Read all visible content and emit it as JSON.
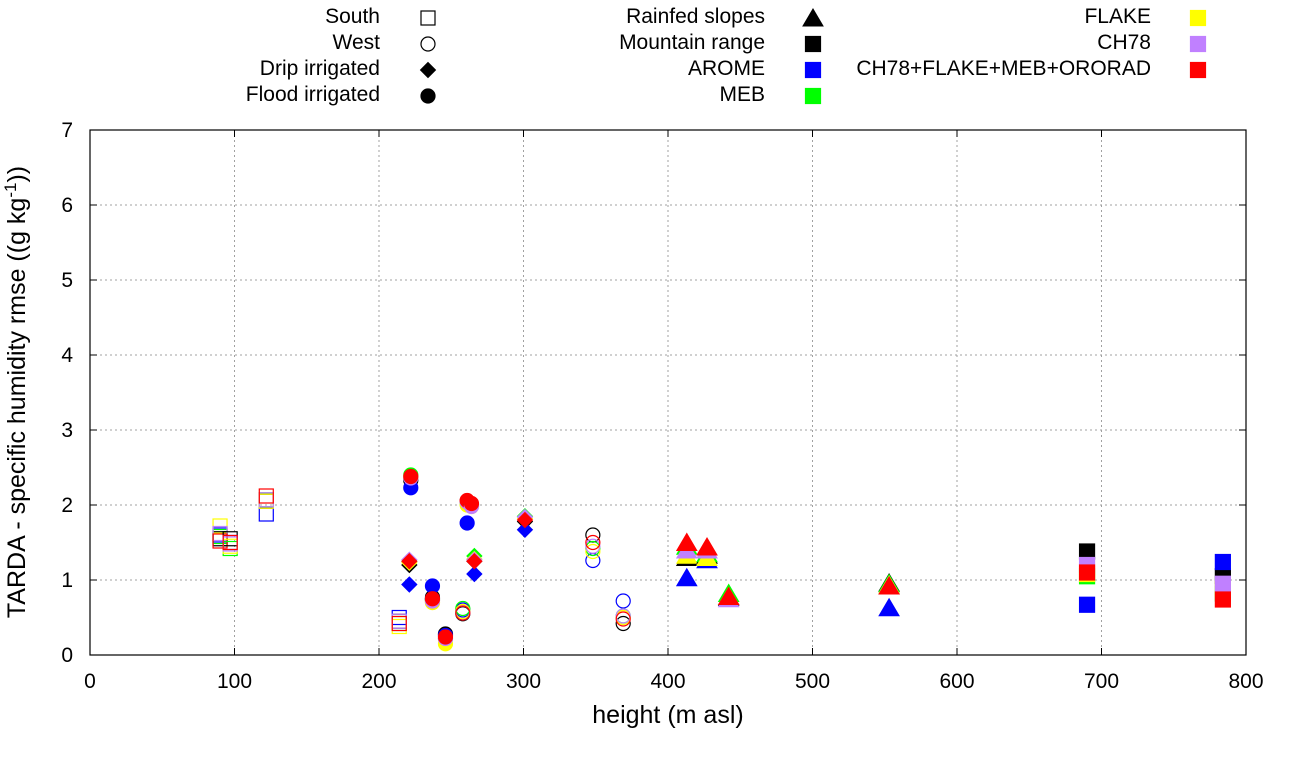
{
  "chart_data": {
    "type": "scatter",
    "xlabel": "height (m asl)",
    "ylabel_main": "TARDA - specific humidity rmse ((g kg",
    "ylabel_sup": "-1",
    "ylabel_end": "))",
    "xlim": [
      0,
      800
    ],
    "ylim": [
      0,
      7
    ],
    "xticks": [
      0,
      100,
      200,
      300,
      400,
      500,
      600,
      700,
      800
    ],
    "yticks": [
      0,
      1,
      2,
      3,
      4,
      5,
      6,
      7
    ],
    "grid": true,
    "legend_placement": "top, outside plot",
    "legend": {
      "markers": [
        {
          "label": "South",
          "symbol": "square-open"
        },
        {
          "label": "West",
          "symbol": "circle-open"
        },
        {
          "label": "Drip irrigated",
          "symbol": "diamond"
        },
        {
          "label": "Flood irrigated",
          "symbol": "circle"
        },
        {
          "label": "Rainfed slopes",
          "symbol": "triangle"
        },
        {
          "label": "Mountain range",
          "symbol": "square"
        }
      ],
      "experiments": [
        {
          "label": "AROME",
          "color": "#0000ff"
        },
        {
          "label": "MEB",
          "color": "#00ff00"
        },
        {
          "label": "FLAKE",
          "color": "#ffff00"
        },
        {
          "label": "CH78",
          "color": "#c080ff"
        },
        {
          "label": "CH78+FLAKE+MEB+ORORAD",
          "color": "#ff0000"
        }
      ]
    },
    "colors": {
      "REF": "#000000",
      "AROME": "#0000ff",
      "MEB": "#00ff00",
      "FLAKE": "#ffff00",
      "CH78": "#c080ff",
      "CH78+FLAKE+MEB+ORORAD": "#ff0000"
    },
    "series": [
      {
        "x": 90,
        "symbol": "square-open",
        "values": {
          "REF": 1.55,
          "AROME": 1.6,
          "MEB": 1.58,
          "FLAKE": 1.72,
          "CH78": 1.62,
          "CH78+FLAKE+MEB+ORORAD": 1.52
        }
      },
      {
        "x": 97,
        "symbol": "square-open",
        "values": {
          "REF": 1.55,
          "AROME": 1.5,
          "MEB": 1.42,
          "FLAKE": 1.45,
          "CH78": 1.48,
          "CH78+FLAKE+MEB+ORORAD": 1.5
        }
      },
      {
        "x": 122,
        "symbol": "square-open",
        "values": {
          "REF": 2.05,
          "AROME": 1.88,
          "MEB": 2.07,
          "FLAKE": 2.05,
          "CH78": 2.07,
          "CH78+FLAKE+MEB+ORORAD": 2.12
        }
      },
      {
        "x": 214,
        "symbol": "square-open",
        "values": {
          "REF": 0.45,
          "AROME": 0.5,
          "MEB": 0.42,
          "FLAKE": 0.38,
          "CH78": 0.45,
          "CH78+FLAKE+MEB+ORORAD": 0.42
        }
      },
      {
        "x": 237,
        "symbol": "circle-open",
        "values": {
          "REF": 0.77,
          "AROME": 0.75,
          "MEB": 0.74,
          "FLAKE": 0.7,
          "CH78": 0.74,
          "CH78+FLAKE+MEB+ORORAD": 0.73
        }
      },
      {
        "x": 258,
        "symbol": "circle-open",
        "values": {
          "REF": 0.55,
          "AROME": 0.6,
          "MEB": 0.62,
          "FLAKE": 0.58,
          "CH78": 0.56,
          "CH78+FLAKE+MEB+ORORAD": 0.56
        }
      },
      {
        "x": 348,
        "symbol": "circle-open",
        "values": {
          "REF": 1.6,
          "AROME": 1.26,
          "MEB": 1.42,
          "FLAKE": 1.38,
          "CH78": 1.45,
          "CH78+FLAKE+MEB+ORORAD": 1.5
        }
      },
      {
        "x": 369,
        "symbol": "circle-open",
        "values": {
          "REF": 0.42,
          "AROME": 0.72,
          "MEB": 0.52,
          "FLAKE": 0.5,
          "CH78": 0.52,
          "CH78+FLAKE+MEB+ORORAD": 0.48
        }
      },
      {
        "x": 221,
        "symbol": "diamond",
        "values": {
          "REF": 1.2,
          "AROME": 0.94,
          "MEB": 1.25,
          "FLAKE": 1.23,
          "CH78": 1.27,
          "CH78+FLAKE+MEB+ORORAD": 1.25
        }
      },
      {
        "x": 266,
        "symbol": "diamond",
        "values": {
          "REF": 1.25,
          "AROME": 1.08,
          "MEB": 1.32,
          "FLAKE": 1.28,
          "CH78": 1.27,
          "CH78+FLAKE+MEB+ORORAD": 1.25
        }
      },
      {
        "x": 301,
        "symbol": "diamond",
        "values": {
          "REF": 1.78,
          "AROME": 1.67,
          "MEB": 1.85,
          "FLAKE": 1.82,
          "CH78": 1.84,
          "CH78+FLAKE+MEB+ORORAD": 1.8
        }
      },
      {
        "x": 222,
        "symbol": "circle",
        "values": {
          "REF": 2.33,
          "AROME": 2.23,
          "MEB": 2.4,
          "FLAKE": 2.37,
          "CH78": 2.36,
          "CH78+FLAKE+MEB+ORORAD": 2.38
        }
      },
      {
        "x": 237,
        "symbol": "circle",
        "values": {
          "REF": 0.75,
          "AROME": 0.92,
          "MEB": 0.73,
          "FLAKE": 0.7,
          "CH78": 0.72,
          "CH78+FLAKE+MEB+ORORAD": 0.75
        }
      },
      {
        "x": 246,
        "symbol": "circle",
        "values": {
          "REF": 0.28,
          "AROME": 0.26,
          "MEB": 0.22,
          "FLAKE": 0.15,
          "CH78": 0.22,
          "CH78+FLAKE+MEB+ORORAD": 0.24
        }
      },
      {
        "x": 261,
        "symbol": "circle",
        "values": {
          "REF": 2.05,
          "AROME": 1.76,
          "MEB": 2.02,
          "FLAKE": 2.0,
          "CH78": 2.04,
          "CH78+FLAKE+MEB+ORORAD": 2.06
        }
      },
      {
        "x": 264,
        "symbol": "circle",
        "values": {
          "REF": 2.0,
          "AROME": 2.0,
          "MEB": 2.0,
          "FLAKE": 1.98,
          "CH78": 1.98,
          "CH78+FLAKE+MEB+ORORAD": 2.02
        }
      },
      {
        "x": 413,
        "symbol": "triangle",
        "values": {
          "REF": 1.3,
          "AROME": 1.03,
          "MEB": 1.45,
          "FLAKE": 1.33,
          "CH78": 1.4,
          "CH78+FLAKE+MEB+ORORAD": 1.5
        }
      },
      {
        "x": 427,
        "symbol": "triangle",
        "values": {
          "REF": 1.33,
          "AROME": 1.27,
          "MEB": 1.35,
          "FLAKE": 1.3,
          "CH78": 1.4,
          "CH78+FLAKE+MEB+ORORAD": 1.44
        }
      },
      {
        "x": 442,
        "symbol": "triangle",
        "values": {
          "REF": 0.77,
          "AROME": 0.78,
          "MEB": 0.82,
          "FLAKE": 0.78,
          "CH78": 0.75,
          "CH78+FLAKE+MEB+ORORAD": 0.78
        }
      },
      {
        "x": 553,
        "symbol": "triangle",
        "values": {
          "REF": 0.96,
          "AROME": 0.63,
          "MEB": 0.95,
          "FLAKE": 0.93,
          "CH78": 0.92,
          "CH78+FLAKE+MEB+ORORAD": 0.92
        }
      },
      {
        "x": 690,
        "symbol": "square",
        "values": {
          "REF": 1.38,
          "AROME": 0.67,
          "MEB": 1.05,
          "FLAKE": 1.08,
          "CH78": 1.2,
          "CH78+FLAKE+MEB+ORORAD": 1.1
        }
      },
      {
        "x": 784,
        "symbol": "square",
        "values": {
          "REF": 1.05,
          "AROME": 1.24,
          "MEB": 0.82,
          "FLAKE": 0.88,
          "CH78": 0.95,
          "CH78+FLAKE+MEB+ORORAD": 0.74
        }
      }
    ]
  }
}
